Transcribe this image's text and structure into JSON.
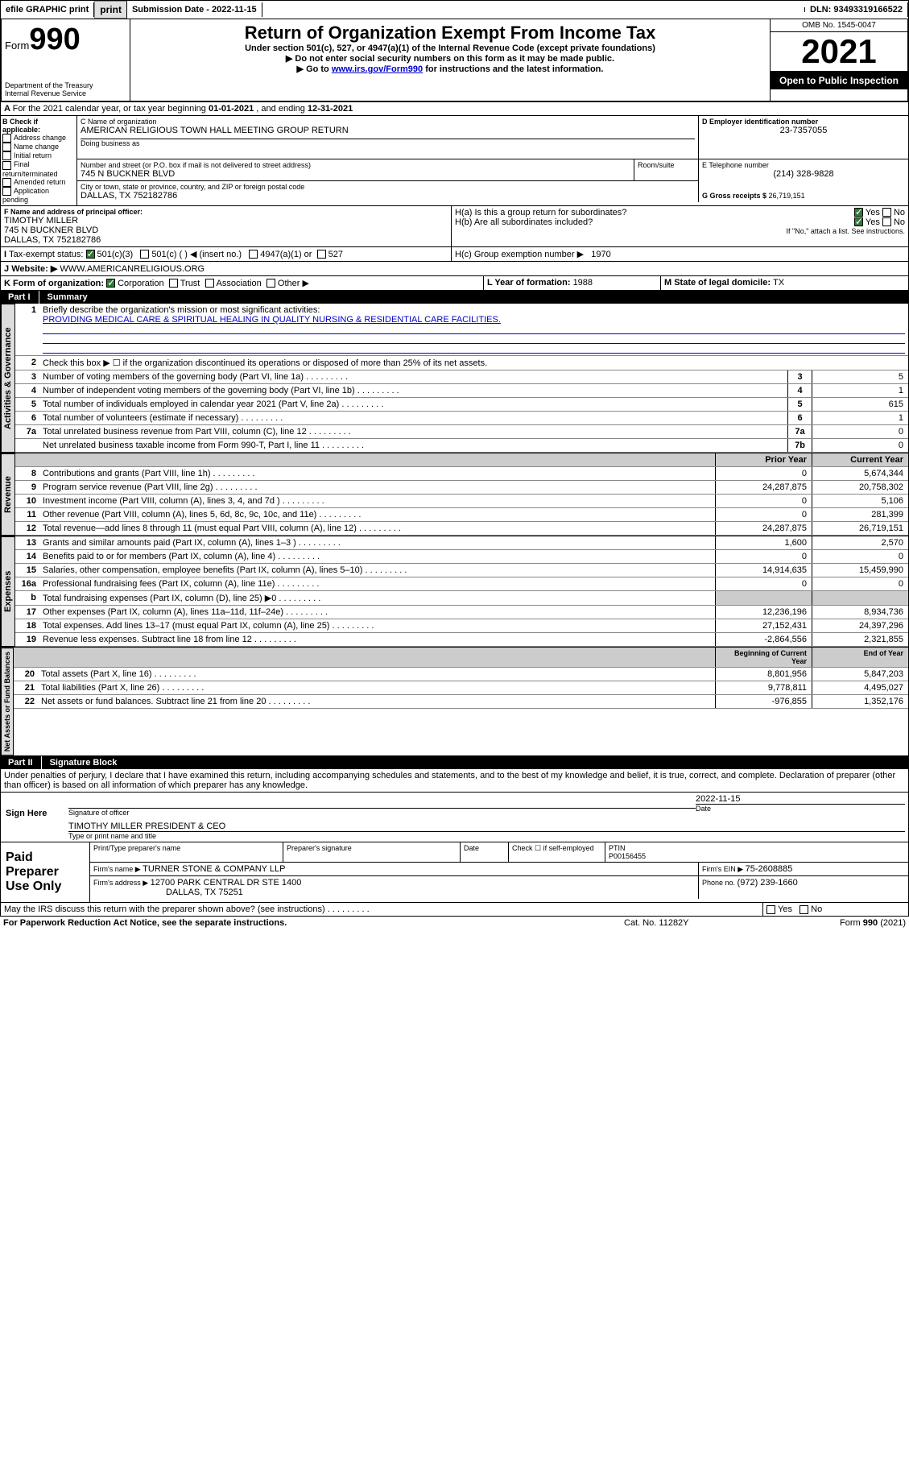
{
  "topbar": {
    "efile": "efile GRAPHIC print",
    "subdate_label": "Submission Date - ",
    "subdate": "2022-11-15",
    "dln_label": "DLN: ",
    "dln": "93493319166522"
  },
  "header": {
    "form": "Form",
    "num": "990",
    "dept": "Department of the Treasury",
    "irs": "Internal Revenue Service",
    "title": "Return of Organization Exempt From Income Tax",
    "sub1": "Under section 501(c), 527, or 4947(a)(1) of the Internal Revenue Code (except private foundations)",
    "sub2": "▶ Do not enter social security numbers on this form as it may be made public.",
    "sub3a": "▶ Go to ",
    "sub3link": "www.irs.gov/Form990",
    "sub3b": " for instructions and the latest information.",
    "omb": "OMB No. 1545-0047",
    "year": "2021",
    "open": "Open to Public Inspection"
  },
  "a": {
    "label": "For the 2021 calendar year, or tax year beginning ",
    "begin": "01-01-2021",
    "mid": " , and ending ",
    "end": "12-31-2021"
  },
  "b": {
    "hdr": "B Check if applicable:",
    "items": [
      "Address change",
      "Name change",
      "Initial return",
      "Final return/terminated",
      "Amended return",
      "Application pending"
    ]
  },
  "c": {
    "name_lbl": "C Name of organization",
    "name": "AMERICAN RELIGIOUS TOWN HALL MEETING GROUP RETURN",
    "dba_lbl": "Doing business as",
    "addr_lbl": "Number and street (or P.O. box if mail is not delivered to street address)",
    "room_lbl": "Room/suite",
    "addr": "745 N BUCKNER BLVD",
    "city_lbl": "City or town, state or province, country, and ZIP or foreign postal code",
    "city": "DALLAS, TX  752182786"
  },
  "d": {
    "lbl": "D Employer identification number",
    "val": "23-7357055"
  },
  "e": {
    "lbl": "E Telephone number",
    "val": "(214) 328-9828"
  },
  "g": {
    "lbl": "G Gross receipts $ ",
    "val": "26,719,151"
  },
  "f": {
    "lbl": "F  Name and address of principal officer:",
    "name": "TIMOTHY MILLER",
    "addr1": "745 N BUCKNER BLVD",
    "addr2": "DALLAS, TX  752182786"
  },
  "h": {
    "a": "H(a)  Is this a group return for subordinates?",
    "b": "H(b)  Are all subordinates included?",
    "bnote": "If \"No,\" attach a list. See instructions.",
    "c_lbl": "H(c)  Group exemption number ▶",
    "c_val": "1970",
    "yes": "Yes",
    "no": "No"
  },
  "i": {
    "lbl": "Tax-exempt status:",
    "opts": [
      "501(c)(3)",
      "501(c) (  ) ◀ (insert no.)",
      "4947(a)(1) or",
      "527"
    ]
  },
  "j": {
    "lbl": "Website: ▶",
    "val": "WWW.AMERICANRELIGIOUS.ORG"
  },
  "k": {
    "lbl": "K Form of organization:",
    "opts": [
      "Corporation",
      "Trust",
      "Association",
      "Other ▶"
    ]
  },
  "l": {
    "lbl": "L Year of formation: ",
    "val": "1988"
  },
  "m": {
    "lbl": "M State of legal domicile: ",
    "val": "TX"
  },
  "part1": {
    "num": "Part I",
    "title": "Summary"
  },
  "summary": {
    "line1_lbl": "Briefly describe the organization's mission or most significant activities:",
    "line1_val": "PROVIDING MEDICAL CARE & SPIRITUAL HEALING IN QUALITY NURSING & RESIDENTIAL CARE FACILITIES.",
    "line2": "Check this box ▶ ☐  if the organization discontinued its operations or disposed of more than 25% of its net assets.",
    "rows_gov": [
      {
        "n": "3",
        "label": "Number of voting members of the governing body (Part VI, line 1a)",
        "box": "3",
        "val": "5"
      },
      {
        "n": "4",
        "label": "Number of independent voting members of the governing body (Part VI, line 1b)",
        "box": "4",
        "val": "1"
      },
      {
        "n": "5",
        "label": "Total number of individuals employed in calendar year 2021 (Part V, line 2a)",
        "box": "5",
        "val": "615"
      },
      {
        "n": "6",
        "label": "Total number of volunteers (estimate if necessary)",
        "box": "6",
        "val": "1"
      },
      {
        "n": "7a",
        "label": "Total unrelated business revenue from Part VIII, column (C), line 12",
        "box": "7a",
        "val": "0"
      },
      {
        "n": "",
        "label": "Net unrelated business taxable income from Form 990-T, Part I, line 11",
        "box": "7b",
        "val": "0"
      }
    ],
    "col_prior": "Prior Year",
    "col_curr": "Current Year",
    "rows_rev": [
      {
        "n": "8",
        "label": "Contributions and grants (Part VIII, line 1h)",
        "p": "0",
        "c": "5,674,344"
      },
      {
        "n": "9",
        "label": "Program service revenue (Part VIII, line 2g)",
        "p": "24,287,875",
        "c": "20,758,302"
      },
      {
        "n": "10",
        "label": "Investment income (Part VIII, column (A), lines 3, 4, and 7d )",
        "p": "0",
        "c": "5,106"
      },
      {
        "n": "11",
        "label": "Other revenue (Part VIII, column (A), lines 5, 6d, 8c, 9c, 10c, and 11e)",
        "p": "0",
        "c": "281,399"
      },
      {
        "n": "12",
        "label": "Total revenue—add lines 8 through 11 (must equal Part VIII, column (A), line 12)",
        "p": "24,287,875",
        "c": "26,719,151"
      }
    ],
    "rows_exp": [
      {
        "n": "13",
        "label": "Grants and similar amounts paid (Part IX, column (A), lines 1–3 )",
        "p": "1,600",
        "c": "2,570"
      },
      {
        "n": "14",
        "label": "Benefits paid to or for members (Part IX, column (A), line 4)",
        "p": "0",
        "c": "0"
      },
      {
        "n": "15",
        "label": "Salaries, other compensation, employee benefits (Part IX, column (A), lines 5–10)",
        "p": "14,914,635",
        "c": "15,459,990"
      },
      {
        "n": "16a",
        "label": "Professional fundraising fees (Part IX, column (A), line 11e)",
        "p": "0",
        "c": "0"
      },
      {
        "n": "b",
        "label": "Total fundraising expenses (Part IX, column (D), line 25) ▶0",
        "p": "",
        "c": "",
        "shade": true
      },
      {
        "n": "17",
        "label": "Other expenses (Part IX, column (A), lines 11a–11d, 11f–24e)",
        "p": "12,236,196",
        "c": "8,934,736"
      },
      {
        "n": "18",
        "label": "Total expenses. Add lines 13–17 (must equal Part IX, column (A), line 25)",
        "p": "27,152,431",
        "c": "24,397,296"
      },
      {
        "n": "19",
        "label": "Revenue less expenses. Subtract line 18 from line 12",
        "p": "-2,864,556",
        "c": "2,321,855"
      }
    ],
    "col_begin": "Beginning of Current Year",
    "col_end": "End of Year",
    "rows_net": [
      {
        "n": "20",
        "label": "Total assets (Part X, line 16)",
        "p": "8,801,956",
        "c": "5,847,203"
      },
      {
        "n": "21",
        "label": "Total liabilities (Part X, line 26)",
        "p": "9,778,811",
        "c": "4,495,027"
      },
      {
        "n": "22",
        "label": "Net assets or fund balances. Subtract line 21 from line 20",
        "p": "-976,855",
        "c": "1,352,176"
      }
    ]
  },
  "tabs": {
    "gov": "Activities & Governance",
    "rev": "Revenue",
    "exp": "Expenses",
    "net": "Net Assets or Fund Balances"
  },
  "part2": {
    "num": "Part II",
    "title": "Signature Block"
  },
  "sig": {
    "decl": "Under penalties of perjury, I declare that I have examined this return, including accompanying schedules and statements, and to the best of my knowledge and belief, it is true, correct, and complete. Declaration of preparer (other than officer) is based on all information of which preparer has any knowledge.",
    "sign_here": "Sign Here",
    "sig_officer": "Signature of officer",
    "date": "Date",
    "sig_date": "2022-11-15",
    "name": "TIMOTHY MILLER  PRESIDENT & CEO",
    "name_lbl": "Type or print name and title"
  },
  "paid": {
    "hdr": "Paid Preparer Use Only",
    "cols": [
      "Print/Type preparer's name",
      "Preparer's signature",
      "Date"
    ],
    "check": "Check ☐ if self-employed",
    "ptin_lbl": "PTIN",
    "ptin": "P00156455",
    "firm_name_lbl": "Firm's name    ▶ ",
    "firm_name": "TURNER STONE & COMPANY LLP",
    "firm_ein_lbl": "Firm's EIN ▶ ",
    "firm_ein": "75-2608885",
    "firm_addr_lbl": "Firm's address ▶ ",
    "firm_addr1": "12700 PARK CENTRAL DR STE 1400",
    "firm_addr2": "DALLAS, TX  75251",
    "phone_lbl": "Phone no. ",
    "phone": "(972) 239-1660"
  },
  "footer": {
    "discuss": "May the IRS discuss this return with the preparer shown above? (see instructions)",
    "paperwork": "For Paperwork Reduction Act Notice, see the separate instructions.",
    "cat": "Cat. No. 11282Y",
    "form": "Form 990 (2021)"
  }
}
